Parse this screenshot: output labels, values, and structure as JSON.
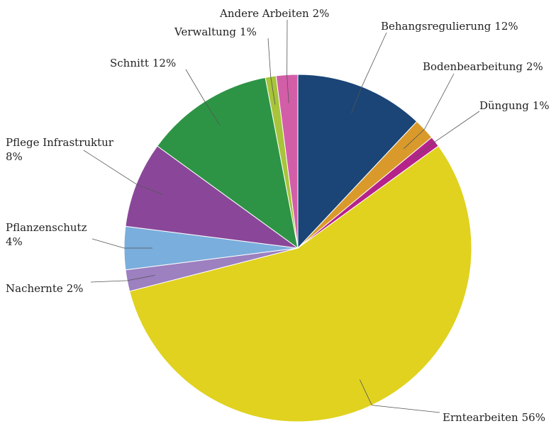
{
  "chart_data": {
    "type": "pie",
    "categories": [
      "Behangsregulierung",
      "Bodenbearbeitung",
      "Düngung",
      "Erntearbeiten",
      "Nachernte",
      "Pflanzenschutz",
      "Pflege Infrastruktur",
      "Schnitt",
      "Verwaltung",
      "Andere Arbeiten"
    ],
    "values": [
      12,
      2,
      1,
      56,
      2,
      4,
      8,
      12,
      1,
      2
    ],
    "value_labels": [
      "12%",
      "2%",
      "1%",
      "56%",
      "2%",
      "4%",
      "8%",
      "12%",
      "1%",
      "2%"
    ],
    "colors": [
      "#1a4576",
      "#d99a2b",
      "#b5228a",
      "#e0d21f",
      "#9c80c0",
      "#7aaedc",
      "#8a4799",
      "#2e9445",
      "#a8c43a",
      "#d35ea8"
    ]
  }
}
